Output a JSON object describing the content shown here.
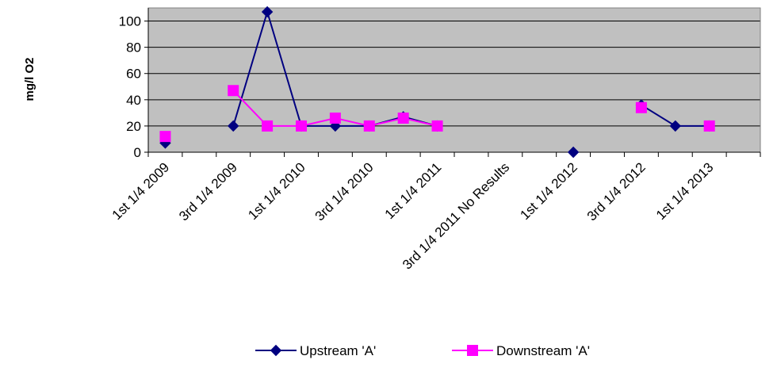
{
  "chart_data": {
    "type": "line",
    "ylabel": "mg/l O2",
    "xlabel": "",
    "ylim": [
      0,
      110
    ],
    "yticks": [
      0,
      20,
      40,
      60,
      80,
      100
    ],
    "grid": true,
    "plot_background": "#c0c0c0",
    "legend_position": "bottom",
    "categories": [
      "1st  1/4 2009",
      "",
      "3rd 1/4 2009",
      "",
      "1st  1/4 2010",
      "",
      "3rd 1/4 2010",
      "",
      "1st 1/4 2011",
      "",
      "3rd 1/4 2011 No Results",
      "",
      "1st 1/4 2012",
      "",
      "3rd 1/4 2012",
      "",
      "1st 1/4 2013",
      ""
    ],
    "series": [
      {
        "name": "Upstream 'A'",
        "color": "#000080",
        "marker": "diamond",
        "values": [
          7,
          null,
          20,
          107,
          20,
          20,
          20,
          27,
          20,
          null,
          null,
          null,
          0,
          null,
          36,
          20,
          20,
          null
        ]
      },
      {
        "name": "Downstream 'A'",
        "color": "#ff00ff",
        "marker": "square",
        "values": [
          12,
          null,
          47,
          20,
          20,
          26,
          20,
          26,
          20,
          null,
          null,
          null,
          null,
          null,
          34,
          null,
          20,
          null
        ]
      }
    ]
  }
}
